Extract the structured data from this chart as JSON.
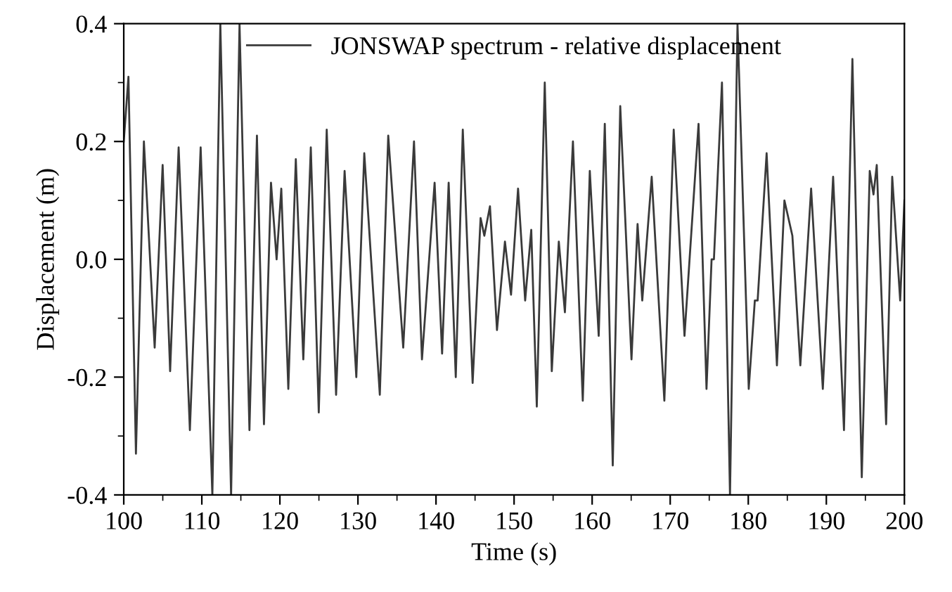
{
  "chart_data": {
    "type": "line",
    "xlabel": "Time (s)",
    "ylabel": "Displacement (m)",
    "series": [
      {
        "name": "JONSWAP spectrum - relative displacement",
        "color": "#3a3a3a",
        "x": [
          100,
          100.6,
          101.56,
          102.58,
          103.96,
          104.98,
          105.94,
          107.03,
          108.47,
          109.85,
          111.35,
          112.37,
          113.75,
          114.83,
          116.1,
          117.06,
          117.96,
          118.86,
          119.58,
          120.18,
          121.08,
          122.04,
          123.0,
          123.96,
          124.98,
          126.0,
          127.2,
          128.29,
          129.79,
          130.81,
          132.8,
          133.88,
          135.8,
          137.18,
          138.2,
          139.82,
          140.78,
          141.62,
          142.53,
          143.43,
          144.69,
          145.71,
          146.19,
          146.91,
          147.81,
          148.83,
          149.61,
          150.51,
          151.42,
          152.2,
          152.91,
          153.93,
          154.83,
          155.73,
          156.51,
          157.54,
          158.8,
          159.7,
          160.84,
          161.62,
          162.64,
          163.6,
          165.04,
          165.82,
          166.42,
          167.63,
          169.25,
          170.45,
          171.83,
          173.63,
          174.65,
          175.3,
          175.6,
          176.63,
          177.66,
          178.62,
          180.06,
          180.84,
          181.2,
          182.35,
          183.67,
          184.63,
          185.65,
          186.67,
          188.05,
          189.55,
          190.87,
          192.26,
          193.34,
          194.54,
          195.56,
          196.04,
          196.46,
          197.66,
          198.44,
          199.46,
          200
        ],
        "values": [
          0.2,
          0.31,
          -0.33,
          0.2,
          -0.15,
          0.16,
          -0.19,
          0.19,
          -0.29,
          0.19,
          -0.4,
          0.4,
          -0.4,
          0.4,
          -0.29,
          0.21,
          -0.28,
          0.13,
          0.0,
          0.12,
          -0.22,
          0.17,
          -0.17,
          0.19,
          -0.26,
          0.22,
          -0.23,
          0.15,
          -0.2,
          0.18,
          -0.23,
          0.21,
          -0.15,
          0.2,
          -0.17,
          0.13,
          -0.16,
          0.13,
          -0.2,
          0.22,
          -0.21,
          0.07,
          0.04,
          0.09,
          -0.12,
          0.03,
          -0.06,
          0.12,
          -0.07,
          0.05,
          -0.25,
          0.3,
          -0.19,
          0.03,
          -0.09,
          0.2,
          -0.24,
          0.15,
          -0.13,
          0.23,
          -0.35,
          0.26,
          -0.17,
          0.06,
          -0.07,
          0.14,
          -0.24,
          0.22,
          -0.13,
          0.23,
          -0.22,
          0.0,
          0.0,
          0.3,
          -0.4,
          0.4,
          -0.22,
          -0.07,
          -0.07,
          0.18,
          -0.18,
          0.1,
          0.04,
          -0.18,
          0.12,
          -0.22,
          0.14,
          -0.29,
          0.34,
          -0.37,
          0.15,
          0.11,
          0.16,
          -0.28,
          0.14,
          -0.07,
          0.1
        ]
      }
    ],
    "xlim": [
      100,
      200
    ],
    "xticks": [
      100,
      110,
      120,
      130,
      140,
      150,
      160,
      170,
      180,
      190,
      200
    ],
    "ylim": [
      -0.4,
      0.4
    ],
    "yticks": [
      -0.4,
      -0.2,
      {
        "value": 0,
        "label": "0.0"
      },
      0.2,
      0.4
    ],
    "legend": "top",
    "grid": false,
    "marker": "none",
    "line_style": "solid"
  }
}
